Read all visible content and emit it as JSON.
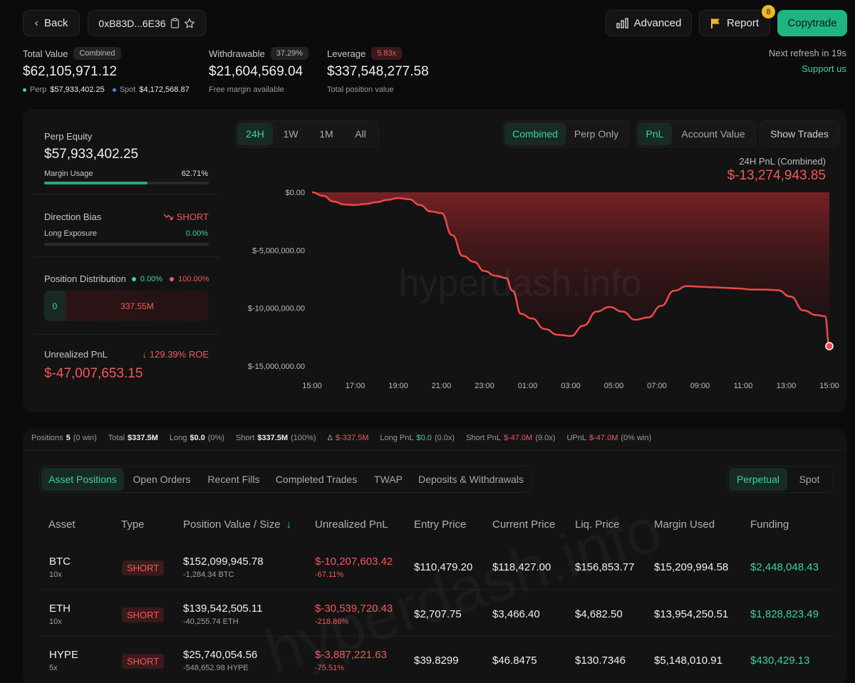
{
  "header": {
    "back_label": "Back",
    "address": "0xB83D...6E36",
    "advanced_label": "Advanced",
    "report_label": "Report",
    "report_badge": "8",
    "copytrade_label": "Copytrade"
  },
  "summary": {
    "total_value_label": "Total Value",
    "total_value_pill": "Combined",
    "total_value": "$62,105,971.12",
    "perp_label": "Perp",
    "perp_value": "$57,933,402.25",
    "spot_label": "Spot",
    "spot_value": "$4,172,568.87",
    "withdrawable_label": "Withdrawable",
    "withdrawable_pill": "37.29%",
    "withdrawable_value": "$21,604,569.04",
    "withdrawable_sub": "Free margin available",
    "leverage_label": "Leverage",
    "leverage_pill": "5.83x",
    "leverage_value": "$337,548,277.58",
    "leverage_sub": "Total position value",
    "refresh_text": "Next refresh in 19s",
    "support_label": "Support us"
  },
  "left_panel": {
    "perp_equity_label": "Perp Equity",
    "perp_equity_value": "$57,933,402.25",
    "margin_usage_label": "Margin Usage",
    "margin_usage_value": "62.71%",
    "margin_usage_fraction": 0.6271,
    "direction_bias_label": "Direction Bias",
    "direction_bias_value": "SHORT",
    "long_exposure_label": "Long Exposure",
    "long_exposure_value": "0.00%",
    "position_dist_label": "Position Distribution",
    "dist_long_pct": "0.00%",
    "dist_short_pct": "100.00%",
    "dist_long_value": "0",
    "dist_short_value": "337.55M",
    "upnl_label": "Unrealized PnL",
    "roe_value": "129.39% ROE",
    "upnl_value": "$-47,007,653.15"
  },
  "chart_controls": {
    "ranges": [
      "24H",
      "1W",
      "1M",
      "All"
    ],
    "modes": [
      "Combined",
      "Perp Only"
    ],
    "metrics": [
      "PnL",
      "Account Value"
    ],
    "show_trades_label": "Show Trades",
    "pnl_title": "24H PnL (Combined)",
    "pnl_value": "$-13,274,943.85",
    "watermark": "hyperdash.info"
  },
  "chart_data": {
    "type": "area",
    "title": "24H PnL (Combined)",
    "xlabel": "",
    "ylabel": "",
    "y_ticks": [
      "$0.00",
      "$-5,000,000.00",
      "$-10,000,000.00",
      "$-15,000,000.00"
    ],
    "x_ticks": [
      "15:00",
      "17:00",
      "19:00",
      "21:00",
      "23:00",
      "01:00",
      "03:00",
      "05:00",
      "07:00",
      "09:00",
      "11:00",
      "13:00",
      "15:00"
    ],
    "ylim": [
      -15000000,
      0
    ],
    "x_hours": [
      0,
      0.5,
      1,
      1.5,
      2,
      2.5,
      3,
      3.5,
      4,
      4.5,
      5,
      5.5,
      6,
      6.5,
      7,
      7.5,
      8,
      8.5,
      9,
      9.3,
      9.7,
      10.2,
      10.8,
      11.4,
      12,
      12.6,
      13.2,
      13.8,
      14.4,
      15,
      15.6,
      16.2,
      16.8,
      17.4,
      18,
      18.6,
      19.2,
      19.8,
      20.4,
      21,
      21.6,
      22.2,
      22.8,
      23.4,
      23.8,
      24
    ],
    "values": [
      0,
      -300000,
      -800000,
      -1050000,
      -1100000,
      -1000000,
      -850000,
      -650000,
      -500000,
      -600000,
      -1100000,
      -1650000,
      -1800000,
      -3700000,
      -5500000,
      -6000000,
      -6800000,
      -7200000,
      -7400000,
      -8500000,
      -10500000,
      -10900000,
      -11800000,
      -12300000,
      -12400000,
      -11500000,
      -10300000,
      -9900000,
      -10300000,
      -11000000,
      -10800000,
      -9800000,
      -8500000,
      -8100000,
      -8150000,
      -8200000,
      -8250000,
      -8300000,
      -8400000,
      -8400000,
      -8450000,
      -9000000,
      -10200000,
      -10600000,
      -10700000,
      -13274943.85
    ],
    "line_color": "#f04848"
  },
  "stats_bar": {
    "positions_label": "Positions",
    "positions_count": "5",
    "positions_win": "(0 win)",
    "total_label": "Total",
    "total_value": "$337.5M",
    "long_label": "Long",
    "long_value": "$0.0",
    "long_pct": "(0%)",
    "short_label": "Short",
    "short_value": "$337.5M",
    "short_pct": "(100%)",
    "delta_label": "Δ",
    "delta_value": "$-337.5M",
    "long_pnl_label": "Long PnL",
    "long_pnl_value": "$0.0",
    "long_pnl_x": "(0.0x)",
    "short_pnl_label": "Short PnL",
    "short_pnl_value": "$-47.0M",
    "short_pnl_x": "(9.0x)",
    "upnl_label": "UPnL",
    "upnl_value": "$-47.0M",
    "upnl_win": "(0% win)"
  },
  "tabs": {
    "items": [
      "Asset Positions",
      "Open Orders",
      "Recent Fills",
      "Completed Trades",
      "TWAP",
      "Deposits & Withdrawals"
    ],
    "market": [
      "Perpetual",
      "Spot"
    ]
  },
  "table": {
    "headers": [
      "Asset",
      "Type",
      "Position Value / Size",
      "Unrealized PnL",
      "Entry Price",
      "Current Price",
      "Liq. Price",
      "Margin Used",
      "Funding"
    ],
    "rows": [
      {
        "asset": "BTC",
        "lev": "10x",
        "type": "SHORT",
        "value": "$152,099,945.78",
        "size": "-1,284.34 BTC",
        "upnl": "$-10,207,603.42",
        "upnl_pct": "-67.11%",
        "entry": "$110,479.20",
        "current": "$118,427.00",
        "liq": "$156,853.77",
        "margin": "$15,209,994.58",
        "funding": "$2,448,048.43"
      },
      {
        "asset": "ETH",
        "lev": "10x",
        "type": "SHORT",
        "value": "$139,542,505.11",
        "size": "-40,255.74 ETH",
        "upnl": "$-30,539,720.43",
        "upnl_pct": "-218.86%",
        "entry": "$2,707.75",
        "current": "$3,466.40",
        "liq": "$4,682.50",
        "margin": "$13,954,250.51",
        "funding": "$1,828,823.49"
      },
      {
        "asset": "HYPE",
        "lev": "5x",
        "type": "SHORT",
        "value": "$25,740,054.56",
        "size": "-548,652.98 HYPE",
        "upnl": "$-3,887,221.63",
        "upnl_pct": "-75.51%",
        "entry": "$39.8299",
        "current": "$46.8475",
        "liq": "$130.7346",
        "margin": "$5,148,010.91",
        "funding": "$430,429.13"
      }
    ]
  },
  "colors": {
    "accent_green": "#3dd39a",
    "loss_red": "#f05a5a",
    "copytrade_bg": "#1fb583",
    "report_badge_bg": "#f2b824"
  },
  "icons": {
    "back": "chevron-left-icon",
    "copy": "clipboard-icon",
    "star": "star-icon",
    "advanced": "bar-chart-icon",
    "report": "flag-icon",
    "direction": "trend-down-icon",
    "roe": "arrow-down-icon",
    "sort": "arrow-down-icon"
  }
}
